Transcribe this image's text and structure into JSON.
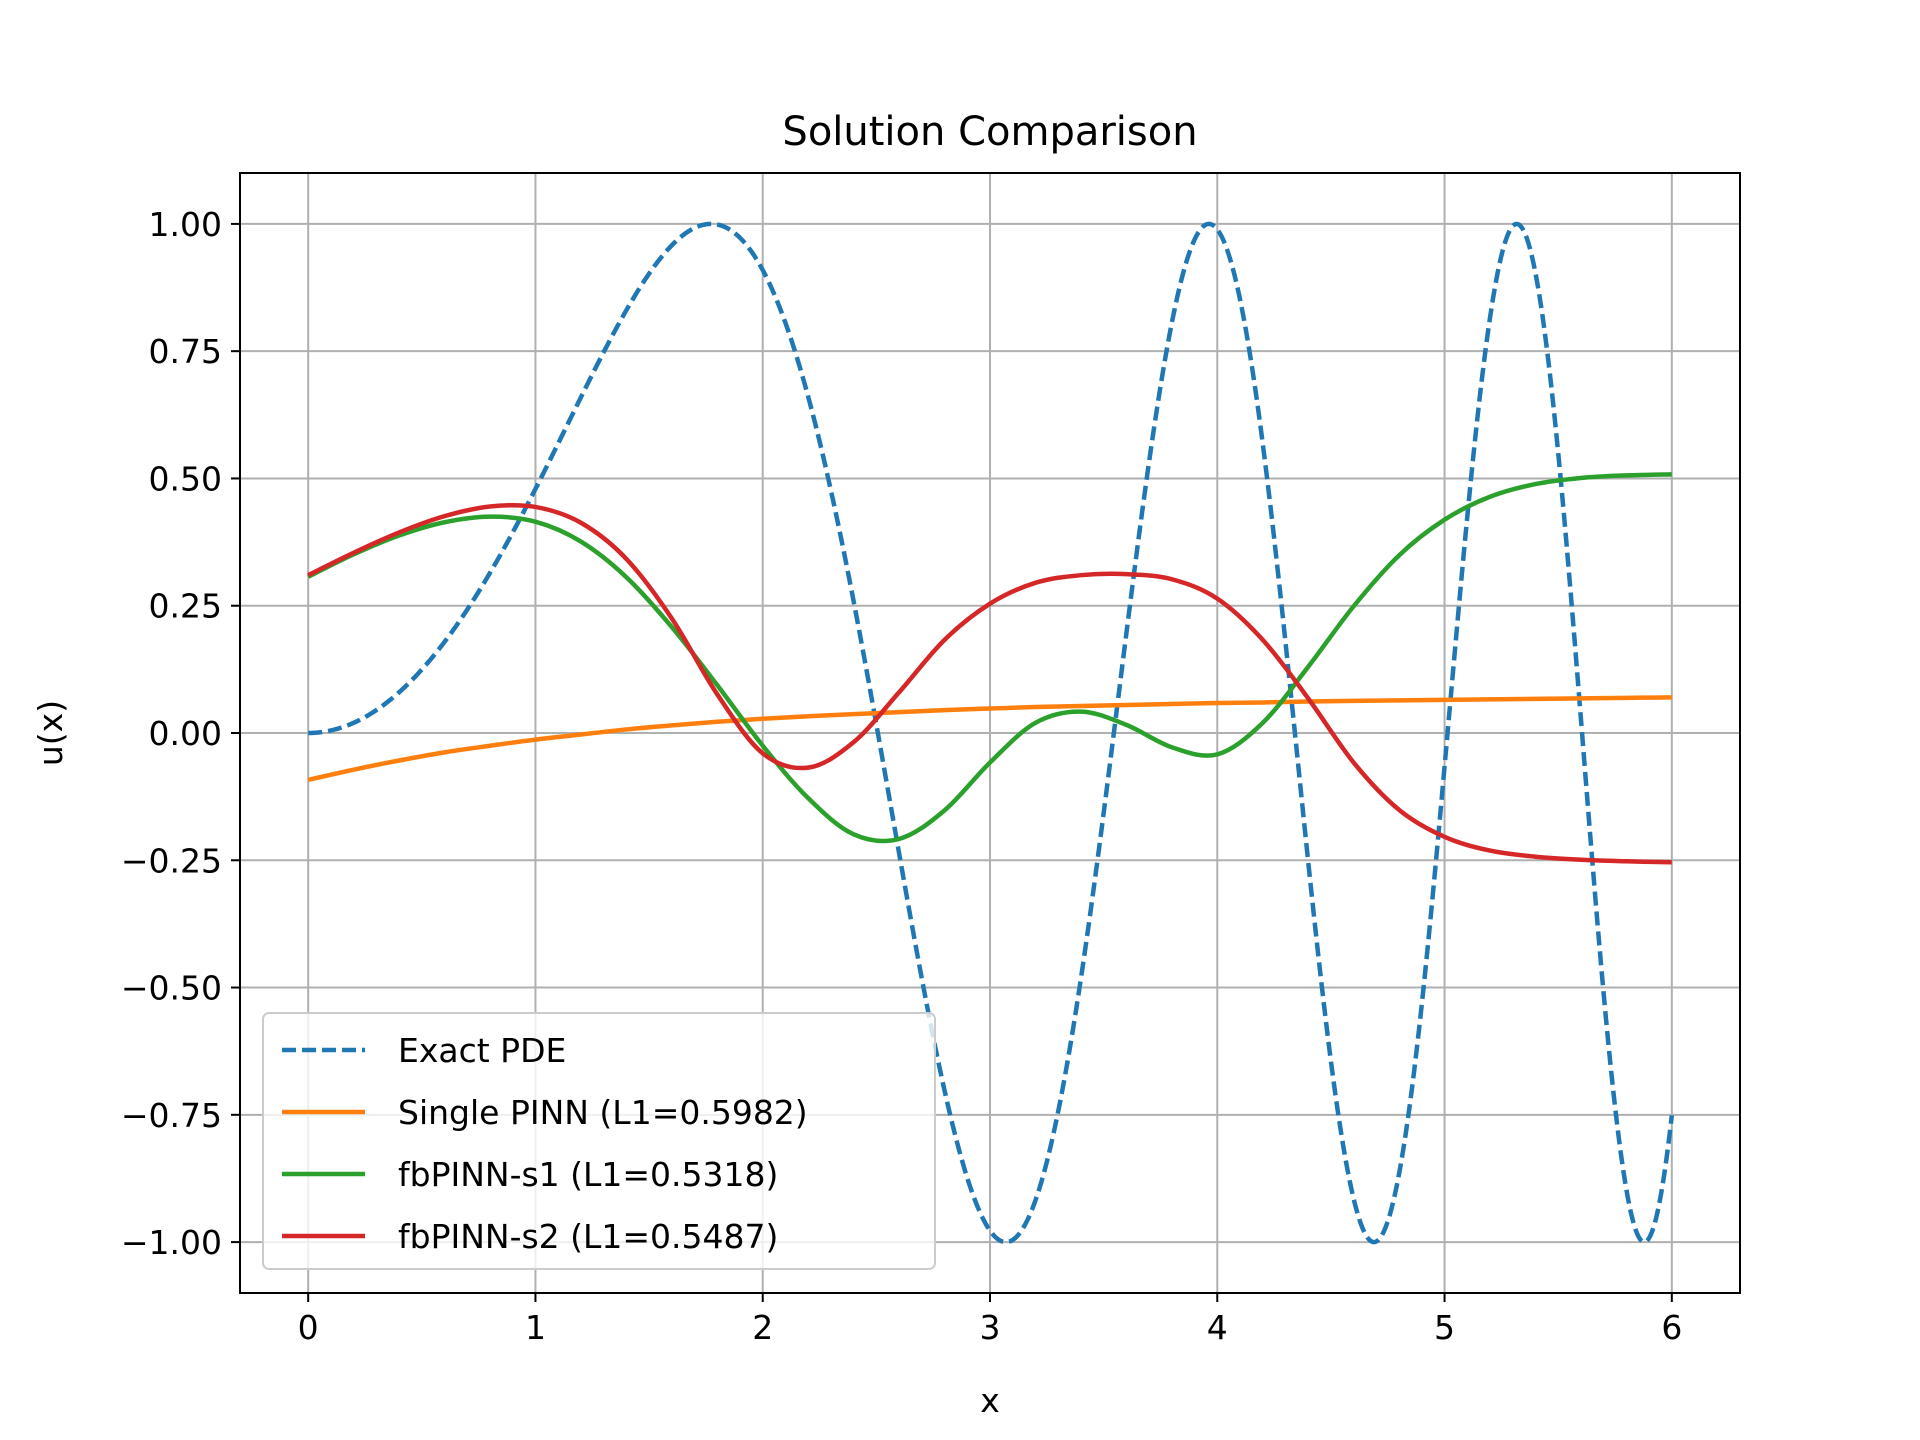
{
  "chart_data": {
    "type": "line",
    "title": "Solution Comparison",
    "xlabel": "x",
    "ylabel": "u(x)",
    "xlim": [
      -0.3,
      6.3
    ],
    "ylim": [
      -1.1,
      1.1
    ],
    "grid": true,
    "legend_position": "lower-left",
    "x_ticks": [
      0,
      1,
      2,
      3,
      4,
      5,
      6
    ],
    "x_tick_labels": [
      "0",
      "1",
      "2",
      "3",
      "4",
      "5",
      "6"
    ],
    "y_ticks": [
      -1.0,
      -0.75,
      -0.5,
      -0.25,
      0.0,
      0.25,
      0.5,
      0.75,
      1.0
    ],
    "y_tick_labels": [
      "−1.00",
      "−0.75",
      "−0.50",
      "−0.25",
      "0.00",
      "0.25",
      "0.50",
      "0.75",
      "1.00"
    ],
    "x": [
      0,
      0.2,
      0.4,
      0.6,
      0.8,
      1.0,
      1.2,
      1.4,
      1.6,
      1.8,
      2.0,
      2.2,
      2.4,
      2.6,
      2.8,
      3.0,
      3.2,
      3.4,
      3.6,
      3.8,
      4.0,
      4.2,
      4.4,
      4.6,
      4.8,
      5.0,
      5.2,
      5.4,
      5.6,
      5.8,
      6.0
    ],
    "series": [
      {
        "name": "Exact PDE",
        "color": "#1f77b4",
        "style": "dashed",
        "function": "sin(x^2/2)",
        "values": [
          0.0,
          0.02,
          0.08,
          0.179,
          0.315,
          0.479,
          0.65,
          0.808,
          0.93,
          0.998,
          0.909,
          0.662,
          0.268,
          -0.188,
          -0.618,
          -0.976,
          -0.938,
          -0.484,
          0.246,
          0.883,
          0.989,
          0.403,
          -0.453,
          -0.982,
          -0.758,
          0.035,
          0.782,
          0.993,
          0.425,
          -0.484,
          -0.751
        ]
      },
      {
        "name": "Single PINN (L1=0.5982)",
        "color": "#ff7f0e",
        "style": "solid",
        "values": [
          -0.092,
          -0.072,
          -0.054,
          -0.038,
          -0.025,
          -0.013,
          -0.003,
          0.007,
          0.015,
          0.022,
          0.028,
          0.033,
          0.037,
          0.041,
          0.045,
          0.048,
          0.051,
          0.053,
          0.055,
          0.057,
          0.059,
          0.06,
          0.062,
          0.063,
          0.064,
          0.065,
          0.066,
          0.067,
          0.068,
          0.069,
          0.07
        ]
      },
      {
        "name": "fbPINN-s1 (L1=0.5318)",
        "color": "#2ca02c",
        "style": "solid",
        "values": [
          0.307,
          0.351,
          0.388,
          0.414,
          0.425,
          0.415,
          0.376,
          0.306,
          0.208,
          0.094,
          -0.025,
          -0.128,
          -0.199,
          -0.208,
          -0.152,
          -0.058,
          0.02,
          0.042,
          0.016,
          -0.028,
          -0.042,
          0.02,
          0.13,
          0.249,
          0.349,
          0.419,
          0.464,
          0.489,
          0.501,
          0.506,
          0.508
        ]
      },
      {
        "name": "fbPINN-s2 (L1=0.5487)",
        "color": "#d62728",
        "style": "solid",
        "values": [
          0.31,
          0.354,
          0.394,
          0.426,
          0.445,
          0.444,
          0.413,
          0.342,
          0.225,
          0.076,
          -0.04,
          -0.068,
          -0.018,
          0.08,
          0.183,
          0.254,
          0.295,
          0.31,
          0.312,
          0.302,
          0.264,
          0.183,
          0.068,
          -0.058,
          -0.151,
          -0.204,
          -0.231,
          -0.243,
          -0.249,
          -0.252,
          -0.254
        ]
      }
    ]
  }
}
